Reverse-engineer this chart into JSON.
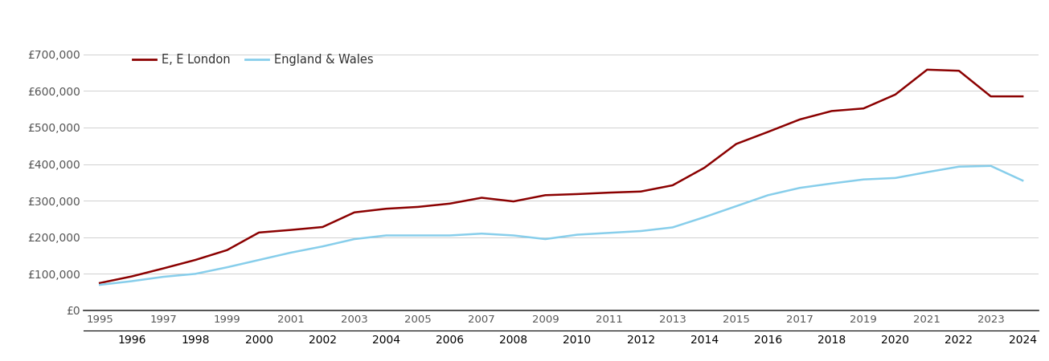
{
  "legend_labels": [
    "E, E London",
    "England & Wales"
  ],
  "line_colors": [
    "#8B0000",
    "#87CEEB"
  ],
  "background_color": "#ffffff",
  "grid_color": "#d0d0d0",
  "years": [
    1995,
    1996,
    1997,
    1998,
    1999,
    2000,
    2001,
    2002,
    2003,
    2004,
    2005,
    2006,
    2007,
    2008,
    2009,
    2010,
    2011,
    2012,
    2013,
    2014,
    2015,
    2016,
    2017,
    2018,
    2019,
    2020,
    2021,
    2022,
    2023,
    2024
  ],
  "east_london": [
    75000,
    93000,
    115000,
    138000,
    165000,
    213000,
    220000,
    228000,
    268000,
    278000,
    283000,
    292000,
    308000,
    298000,
    315000,
    318000,
    322000,
    325000,
    342000,
    390000,
    455000,
    488000,
    522000,
    545000,
    552000,
    590000,
    658000,
    655000,
    585000,
    585000
  ],
  "england_wales": [
    70000,
    80000,
    92000,
    100000,
    118000,
    138000,
    158000,
    175000,
    195000,
    205000,
    205000,
    205000,
    210000,
    205000,
    195000,
    207000,
    212000,
    217000,
    227000,
    255000,
    285000,
    315000,
    335000,
    347000,
    358000,
    362000,
    378000,
    393000,
    395000,
    355000
  ],
  "ylim": [
    0,
    730000
  ],
  "yticks": [
    0,
    100000,
    200000,
    300000,
    400000,
    500000,
    600000,
    700000
  ],
  "xlim": [
    1994.5,
    2024.5
  ],
  "tick_label_color": "#555555",
  "tick_fontsize": 9.5,
  "legend_fontsize": 10.5
}
